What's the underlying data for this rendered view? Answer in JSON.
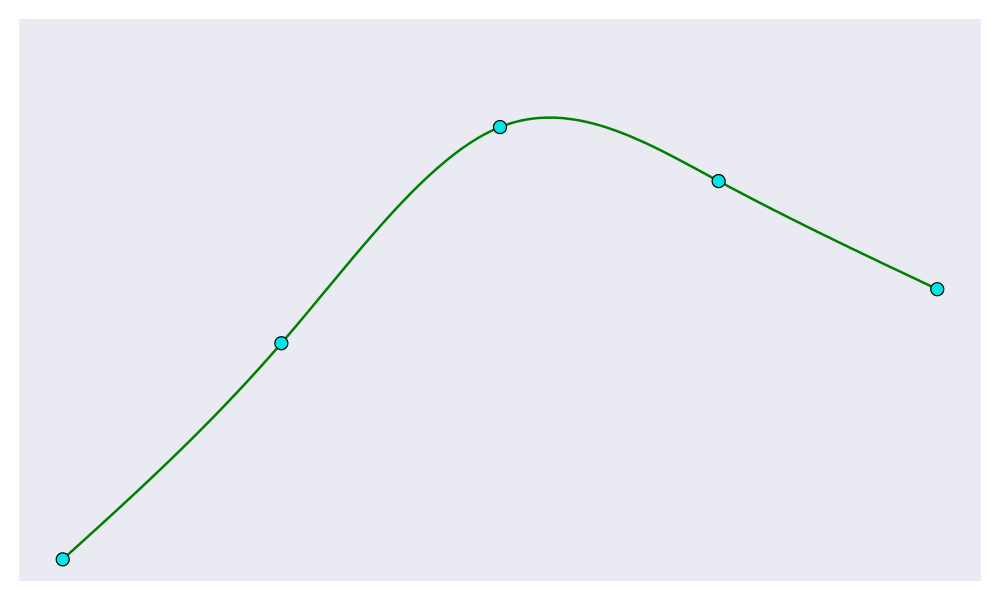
{
  "chart_data": {
    "type": "line",
    "title": "",
    "xlabel": "",
    "ylabel": "",
    "grid": false,
    "legend": "none",
    "xlim": [
      -0.2,
      4.2
    ],
    "ylim": [
      -0.1,
      2.5
    ],
    "series": [
      {
        "x": [
          0,
          1,
          2,
          3,
          4
        ],
        "y": [
          0.0,
          1.0,
          2.0,
          1.75,
          1.25
        ],
        "line_color": "#008000",
        "marker_color": "#00e5e5",
        "marker_edge_color": "#000000",
        "smooth": true
      }
    ]
  },
  "colors": {
    "plot_background": "#eaeaf2",
    "page_background": "#ffffff"
  }
}
